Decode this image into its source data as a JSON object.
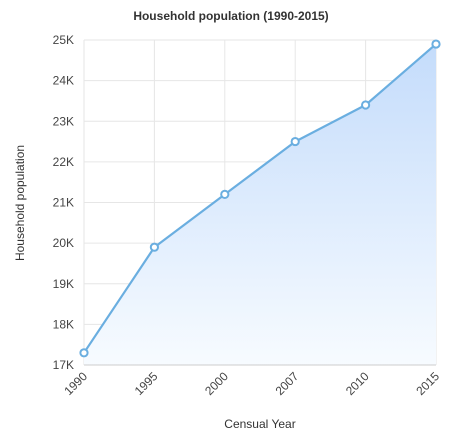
{
  "chart_data": {
    "type": "area",
    "title": "Household population (1990-2015)",
    "xlabel": "Censual Year",
    "ylabel": "Household population",
    "categories": [
      "1990",
      "1995",
      "2000",
      "2007",
      "2010",
      "2015"
    ],
    "values": [
      17300,
      19900,
      21200,
      22500,
      23400,
      24900
    ],
    "ylim": [
      17000,
      25000
    ],
    "yticks": [
      17000,
      18000,
      19000,
      20000,
      21000,
      22000,
      23000,
      24000,
      25000
    ],
    "ytick_labels": [
      "17K",
      "18K",
      "19K",
      "20K",
      "21K",
      "22K",
      "23K",
      "24K",
      "25K"
    ],
    "grid": true,
    "legend": "none",
    "colors": {
      "line": "#6aaee0",
      "fill_top": "#c4dcfb",
      "fill_bottom": "#f7fbff",
      "point_fill": "#ffffff"
    }
  }
}
